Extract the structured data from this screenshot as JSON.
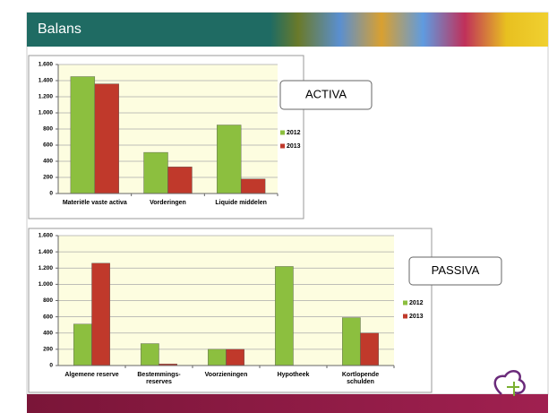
{
  "header": {
    "title": "Balans"
  },
  "chart_data": [
    {
      "type": "bar",
      "annotation": "ACTIVA",
      "categories": [
        "Materiële vaste activa",
        "Vorderingen",
        "Liquide middelen"
      ],
      "series": [
        {
          "name": "2012",
          "color": "#8cbf3f",
          "values": [
            1450,
            510,
            850
          ]
        },
        {
          "name": "2013",
          "color": "#c0392b",
          "values": [
            1360,
            330,
            180
          ]
        }
      ],
      "ylim": [
        0,
        1600
      ],
      "yticks": [
        0,
        200,
        400,
        600,
        800,
        {
          "value": 1000,
          "label": "1.000"
        },
        {
          "value": 1200,
          "label": "1.200"
        },
        {
          "value": 1400,
          "label": "1.400"
        },
        {
          "value": 1600,
          "label": "1.600"
        }
      ],
      "grid": true,
      "legend": "right"
    },
    {
      "type": "bar",
      "annotation": "PASSIVA",
      "categories": [
        "Algemene reserve",
        "Bestemmings-reserves",
        "Voorzieningen",
        "Hypotheek",
        "Kortlopende schulden"
      ],
      "series": [
        {
          "name": "2012",
          "color": "#8cbf3f",
          "values": [
            510,
            270,
            200,
            1220,
            590
          ]
        },
        {
          "name": "2013",
          "color": "#c0392b",
          "values": [
            1260,
            20,
            200,
            0,
            400
          ]
        }
      ],
      "ylim": [
        0,
        1600
      ],
      "yticks": [
        0,
        200,
        400,
        600,
        800,
        {
          "value": 1000,
          "label": "1.000"
        },
        {
          "value": 1200,
          "label": "1.200"
        },
        {
          "value": 1400,
          "label": "1.400"
        },
        {
          "value": 1600,
          "label": "1.600"
        }
      ],
      "grid": true,
      "legend": "right"
    }
  ]
}
